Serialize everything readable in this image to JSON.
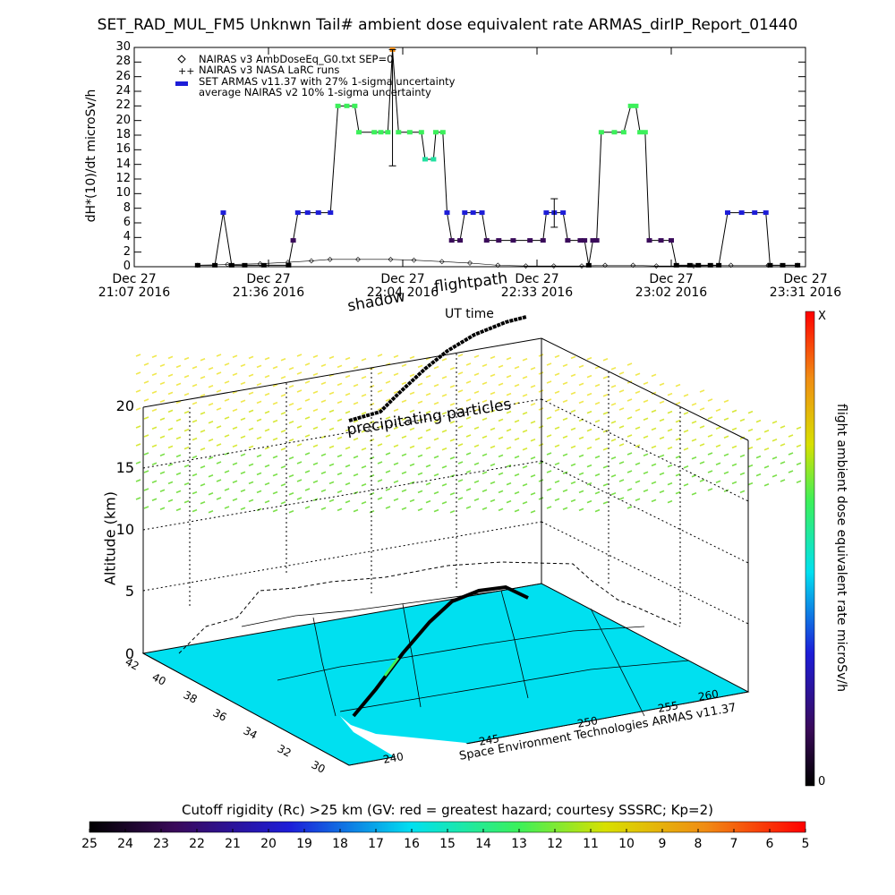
{
  "title": "SET_RAD_MUL_FM5 Unknwn Tail#  ambient dose equivalent rate ARMAS_dirIP_Report_01440",
  "top_chart": {
    "ylabel": "dH*(10)/dt microSv/h",
    "xlabel": "UT time",
    "yticks": [
      "0",
      "2",
      "4",
      "6",
      "8",
      "10",
      "12",
      "14",
      "16",
      "18",
      "20",
      "22",
      "24",
      "26",
      "28",
      "30"
    ],
    "xticks": [
      {
        "line1": "Dec 27",
        "line2": "21:07 2016"
      },
      {
        "line1": "Dec 27",
        "line2": "21:36 2016"
      },
      {
        "line1": "Dec 27",
        "line2": "22:04 2016"
      },
      {
        "line1": "Dec 27",
        "line2": "22:33 2016"
      },
      {
        "line1": "Dec 27",
        "line2": "23:02 2016"
      },
      {
        "line1": "Dec 27",
        "line2": "23:31 2016"
      }
    ],
    "legend": [
      {
        "symbol": "◇",
        "text": "NAIRAS v3 AmbDoseEq_G0.txt SEP=0"
      },
      {
        "symbol": "+",
        "text": "NAIRAS v3 NASA LaRC runs"
      },
      {
        "symbol": "●",
        "text": "SET ARMAS v11.37 with 27% 1-sigma uncertainty"
      },
      {
        "symbol": "",
        "text": "average NAIRAS v2 10% 1-sigma uncertainty"
      }
    ]
  },
  "chart_data": {
    "type": "line",
    "x_unit": "minutes after 21:07 UT, Dec 27 2016",
    "xlim": [
      0,
      144
    ],
    "ylim": [
      0,
      30
    ],
    "series": [
      {
        "name": "SET ARMAS v11.37 with 27% 1-sigma uncertainty",
        "points": [
          [
            13.6,
            0.2
          ],
          [
            17.3,
            0.2
          ],
          [
            19.1,
            7.4
          ],
          [
            20.9,
            0.2
          ],
          [
            23.7,
            0.2
          ],
          [
            27.8,
            0.2
          ],
          [
            33.1,
            0.2
          ],
          [
            34.1,
            3.6
          ],
          [
            35.1,
            7.4
          ],
          [
            37.2,
            7.4
          ],
          [
            39.5,
            7.4
          ],
          [
            42.1,
            7.4
          ],
          [
            43.7,
            22.0
          ],
          [
            45.6,
            22.0
          ],
          [
            47.3,
            22.0
          ],
          [
            48.2,
            18.4
          ],
          [
            51.5,
            18.4
          ],
          [
            52.9,
            18.4
          ],
          [
            54.4,
            18.4
          ],
          [
            55.4,
            29.7
          ],
          [
            56.7,
            18.4
          ],
          [
            59.1,
            18.4
          ],
          [
            61.6,
            18.4
          ],
          [
            62.4,
            14.7
          ],
          [
            64.2,
            14.7
          ],
          [
            64.7,
            18.4
          ],
          [
            66.2,
            18.4
          ],
          [
            67.1,
            7.4
          ],
          [
            68.1,
            3.6
          ],
          [
            69.9,
            3.6
          ],
          [
            70.9,
            7.4
          ],
          [
            72.7,
            7.4
          ],
          [
            74.6,
            7.4
          ],
          [
            75.6,
            3.6
          ],
          [
            78.2,
            3.6
          ],
          [
            81.3,
            3.6
          ],
          [
            84.9,
            3.6
          ],
          [
            87.7,
            3.6
          ],
          [
            88.4,
            7.4
          ],
          [
            90.1,
            7.4
          ],
          [
            92.0,
            7.4
          ],
          [
            93.0,
            3.6
          ],
          [
            95.7,
            3.6
          ],
          [
            96.6,
            3.6
          ],
          [
            97.5,
            0.2
          ],
          [
            98.4,
            3.6
          ],
          [
            99.2,
            3.6
          ],
          [
            100.2,
            18.4
          ],
          [
            103.0,
            18.4
          ],
          [
            105.0,
            18.4
          ],
          [
            106.5,
            22.0
          ],
          [
            107.6,
            22.0
          ],
          [
            108.5,
            18.4
          ],
          [
            109.6,
            18.4
          ],
          [
            110.5,
            3.6
          ],
          [
            113.0,
            3.6
          ],
          [
            115.2,
            3.6
          ],
          [
            116.3,
            0.2
          ],
          [
            119.2,
            0.2
          ],
          [
            121.0,
            0.2
          ],
          [
            123.6,
            0.2
          ],
          [
            125.4,
            0.2
          ],
          [
            127.3,
            7.4
          ],
          [
            130.3,
            7.4
          ],
          [
            133.1,
            7.4
          ],
          [
            135.5,
            7.4
          ],
          [
            136.4,
            0.2
          ],
          [
            139.1,
            0.2
          ],
          [
            142.3,
            0.2
          ]
        ]
      },
      {
        "name": "NAIRAS v3 AmbDoseEq_G0.txt SEP=0",
        "points": [
          [
            13.6,
            0.2
          ],
          [
            20.0,
            0.3
          ],
          [
            27.0,
            0.4
          ],
          [
            33.0,
            0.6
          ],
          [
            38.0,
            0.8
          ],
          [
            42.0,
            1.0
          ],
          [
            48.0,
            1.0
          ],
          [
            55.0,
            1.0
          ],
          [
            60.0,
            0.9
          ],
          [
            66.0,
            0.7
          ],
          [
            72.0,
            0.5
          ],
          [
            78.0,
            0.2
          ],
          [
            84.0,
            0.1
          ],
          [
            90.0,
            0.1
          ],
          [
            96.0,
            0.1
          ],
          [
            101.0,
            0.2
          ],
          [
            107.0,
            0.2
          ],
          [
            112.0,
            0.1
          ],
          [
            120.0,
            0.1
          ],
          [
            128.0,
            0.2
          ],
          [
            136.0,
            0.2
          ],
          [
            142.3,
            0.2
          ]
        ]
      }
    ],
    "error_bars": [
      {
        "x": 55.4,
        "y": 18.4,
        "low": 13.8,
        "high": 29.7
      },
      {
        "x": 90.1,
        "y": 7.4,
        "low": 5.4,
        "high": 9.3
      }
    ]
  },
  "scene": {
    "annotations": {
      "flightpath": "flightpath",
      "shadow": "shadow",
      "precipitating": "precipitating particles"
    },
    "altitude_label": "Altitude (km)",
    "altitude_ticks": [
      "0",
      "5",
      "10",
      "15",
      "20"
    ],
    "lat_ticks": [
      "42",
      "40",
      "38",
      "36",
      "34",
      "32",
      "30"
    ],
    "lon_ticks": [
      "240",
      "245",
      "250",
      "255",
      "260"
    ],
    "credit": "Space Environment Technologies ARMAS v11.37",
    "right_colorbar": {
      "label": "flight ambient dose equivalent rate microSv/h",
      "max_label": "X",
      "min_label": "0"
    }
  },
  "bottom_colorbar": {
    "title": "Cutoff rigidity (Rc) >25 km (GV: red = greatest hazard; courtesy SSSRC; Kp=2)",
    "ticks": [
      "25",
      "24",
      "23",
      "22",
      "21",
      "20",
      "19",
      "18",
      "17",
      "16",
      "15",
      "14",
      "13",
      "12",
      "11",
      "10",
      "9",
      "8",
      "7",
      "6",
      "5"
    ]
  },
  "colors": {
    "black": "#000000",
    "purple": "#3a0a5a",
    "blue": "#1d1dd8",
    "green": "#3cf05a",
    "cyan_ground": "#00e0f0",
    "orange": "#f08c14",
    "teal": "#22e0a0"
  }
}
